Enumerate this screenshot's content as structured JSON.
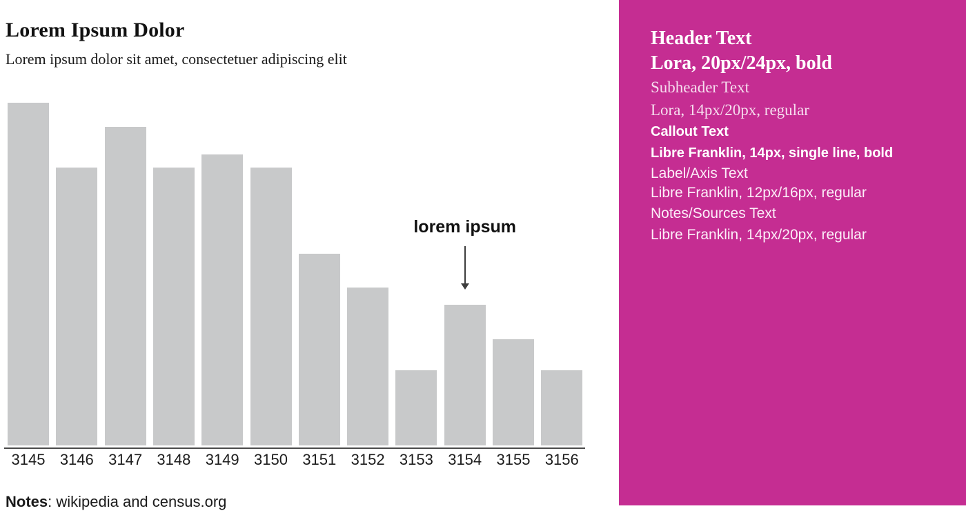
{
  "chart": {
    "notes_bold": "Notes",
    "notes_rest": ": wikipedia and census.org"
  },
  "chart_data": {
    "type": "bar",
    "title": "Lorem Ipsum Dolor",
    "subtitle": "Lorem ipsum dolor sit amet, consectetuer adipiscing elit",
    "categories": [
      "3145",
      "3146",
      "3147",
      "3148",
      "3149",
      "3150",
      "3151",
      "3152",
      "3153",
      "3154",
      "3155",
      "3156"
    ],
    "values": [
      100,
      81,
      93,
      81,
      85,
      81,
      56,
      46,
      22,
      41,
      31,
      22
    ],
    "ylim": [
      0,
      100
    ],
    "xlabel": "",
    "ylabel": "",
    "grid": false,
    "y_axis_shown": false,
    "legend_position": "none",
    "bar_color": "#c8c9ca",
    "annotation": {
      "text": "lorem ipsum",
      "target_category": "3154"
    },
    "notes": "Notes: wikipedia and census.org"
  },
  "panel": {
    "background": "#c52d92",
    "header": {
      "line1": "Header Text",
      "line2": "Lora, 20px/24px, bold"
    },
    "subheader": {
      "line1": "Subheader Text",
      "line2": "Lora, 14px/20px, regular"
    },
    "callout": {
      "line1": "Callout Text",
      "line2": "Libre Franklin, 14px, single line, bold"
    },
    "label_axis": {
      "line1": "Label/Axis Text",
      "line2": "Libre Franklin, 12px/16px, regular"
    },
    "notes_sources": {
      "line1": "Notes/Sources Text",
      "line2": "Libre Franklin, 14px/20px, regular"
    }
  },
  "colors": {
    "accent_magenta": "#c52d92",
    "bar_gray": "#c8c9ca",
    "axis_line": "#4a4a4a",
    "text": "#1a1a1a",
    "arrow": "#3d3d3d"
  }
}
